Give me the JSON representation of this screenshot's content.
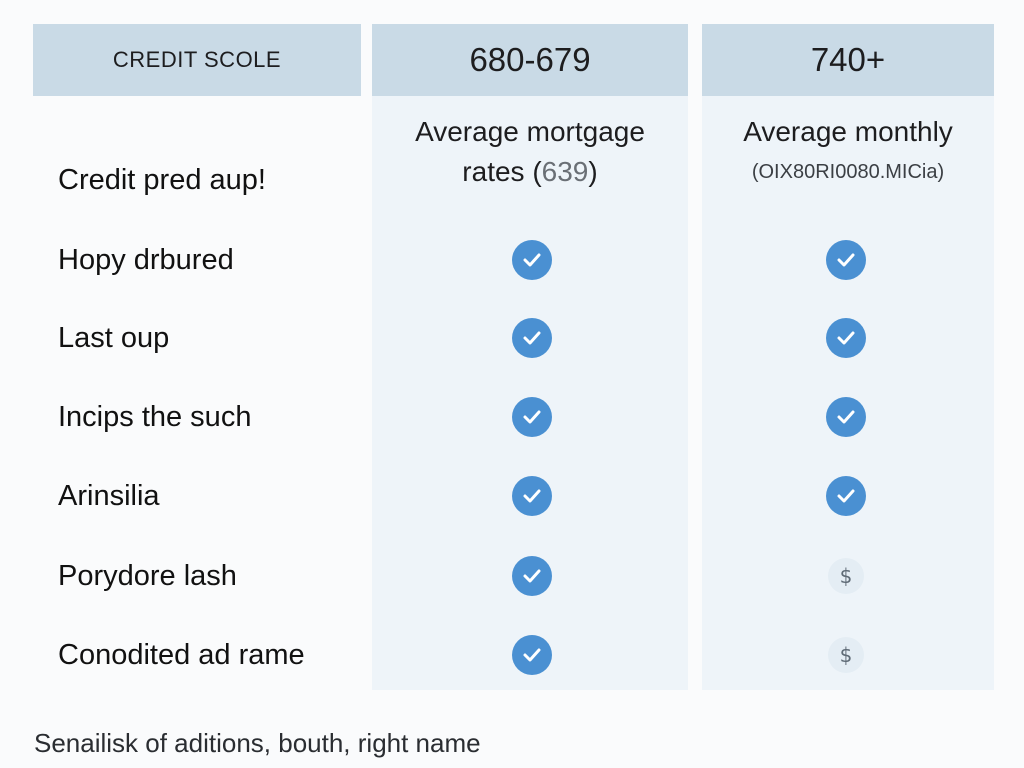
{
  "header": {
    "col0": "CREDIT SCOLE",
    "col1": "680-679",
    "col2": "740+"
  },
  "subheads": {
    "col1_line1": "Average mortgage",
    "col1_line2_prefix": "rates (",
    "col1_line2_value": "639",
    "col1_line2_suffix": ")",
    "col2_line1": "Average monthly",
    "col2_line2": "(OIX80RI0080.MICia)"
  },
  "rows": [
    {
      "label": "Credit pred aup!",
      "col1": "",
      "col2": ""
    },
    {
      "label": "Hopy drbured",
      "col1": "check-icon",
      "col2": "check-icon"
    },
    {
      "label": "Last oup",
      "col1": "check-icon",
      "col2": "check-icon"
    },
    {
      "label": "Incips the such",
      "col1": "check-icon",
      "col2": "check-icon"
    },
    {
      "label": "Arinsilia",
      "col1": "check-icon",
      "col2": "check-icon"
    },
    {
      "label": "Porydore lash",
      "col1": "check-icon",
      "col2": "dollar-icon"
    },
    {
      "label": "Conodited ad rame",
      "col1": "check-icon",
      "col2": "dollar-icon"
    }
  ],
  "dollar_symbol": "$",
  "footer": "Senailisk of aditions, bouth, right name",
  "colors": {
    "header_bg": "#c9dae6",
    "column_bg": "#eef4f9",
    "check_blue": "#4a90d2",
    "dollar_bg": "#e4edf4"
  }
}
